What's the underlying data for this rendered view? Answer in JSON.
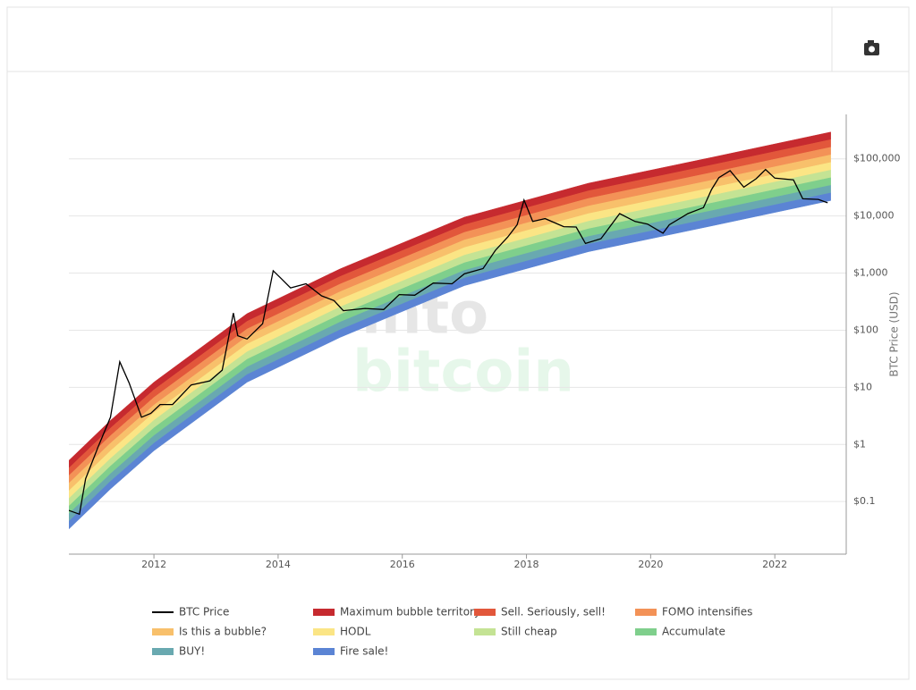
{
  "chart_data": {
    "type": "rainbow",
    "yscale": "log",
    "grid": true,
    "ylabel": "BTC Price (USD)",
    "watermark": [
      "into",
      "bitcoin"
    ],
    "xlim": [
      2010.63,
      2023.15
    ],
    "xticks": [
      2012,
      2014,
      2016,
      2018,
      2020,
      2022
    ],
    "ylim": [
      0.012,
      600000
    ],
    "yticks": [
      {
        "value": 0.1,
        "label": "$0.1"
      },
      {
        "value": 1,
        "label": "$1"
      },
      {
        "value": 10,
        "label": "$10"
      },
      {
        "value": 100,
        "label": "$100"
      },
      {
        "value": 1000,
        "label": "$1,000"
      },
      {
        "value": 10000,
        "label": "$10,000"
      },
      {
        "value": 100000,
        "label": "$100,000"
      }
    ],
    "x": [
      2010.63,
      2011.3,
      2012,
      2013.5,
      2015,
      2017,
      2019,
      2021,
      2022.9
    ],
    "price": {
      "name": "BTC Price",
      "color": "#000000",
      "x": [
        2010.63,
        2010.8,
        2010.9,
        2011.1,
        2011.3,
        2011.45,
        2011.6,
        2011.8,
        2011.95,
        2012.1,
        2012.3,
        2012.6,
        2012.9,
        2013.1,
        2013.28,
        2013.35,
        2013.5,
        2013.75,
        2013.92,
        2014.05,
        2014.2,
        2014.45,
        2014.7,
        2014.9,
        2015.05,
        2015.4,
        2015.7,
        2015.95,
        2016.2,
        2016.5,
        2016.8,
        2017.0,
        2017.3,
        2017.5,
        2017.7,
        2017.85,
        2017.96,
        2018.1,
        2018.3,
        2018.6,
        2018.8,
        2018.95,
        2019.2,
        2019.5,
        2019.75,
        2019.95,
        2020.2,
        2020.3,
        2020.6,
        2020.85,
        2020.98,
        2021.1,
        2021.28,
        2021.5,
        2021.7,
        2021.85,
        2022.0,
        2022.3,
        2022.45,
        2022.7,
        2022.85
      ],
      "values": [
        0.07,
        0.06,
        0.25,
        0.9,
        3,
        28,
        12,
        3,
        3.5,
        5,
        5,
        11,
        13,
        20,
        200,
        80,
        70,
        130,
        1100,
        800,
        550,
        650,
        400,
        330,
        220,
        240,
        230,
        420,
        410,
        670,
        650,
        970,
        1200,
        2500,
        4300,
        7000,
        19000,
        8000,
        9000,
        6500,
        6400,
        3300,
        4000,
        11000,
        8000,
        7200,
        5000,
        7000,
        11000,
        14000,
        29000,
        47000,
        62000,
        32000,
        45000,
        65000,
        46000,
        43000,
        20000,
        19500,
        17000
      ]
    },
    "series": [
      {
        "name": "Maximum bubble territory",
        "color": "#c62a2f",
        "values": [
          0.524,
          2.63,
          12.3,
          195,
          1187,
          9539,
          37510,
          106900,
          294600
        ]
      },
      {
        "name": "Sell. Seriously, sell!",
        "color": "#e2573b",
        "values": [
          0.385,
          1.93,
          9.03,
          143,
          873,
          7019,
          27600,
          78690,
          216700
        ]
      },
      {
        "name": "FOMO intensifies",
        "color": "#f39257",
        "values": [
          0.284,
          1.42,
          6.65,
          105,
          643,
          5168,
          20320,
          57930,
          159600
        ]
      },
      {
        "name": "Is this a bubble?",
        "color": "#f8c06b",
        "values": [
          0.209,
          1.05,
          4.89,
          77.5,
          473,
          3799,
          14940,
          42590,
          117300
        ]
      },
      {
        "name": "HODL",
        "color": "#fbe585",
        "values": [
          0.154,
          0.77,
          3.6,
          57.1,
          348,
          2798,
          11000,
          31370,
          86400
        ]
      },
      {
        "name": "Still cheap",
        "color": "#c4e394",
        "values": [
          0.113,
          0.566,
          2.65,
          41.9,
          256,
          2056,
          8085,
          23050,
          63490
        ]
      },
      {
        "name": "Accumulate",
        "color": "#7fcf8c",
        "values": [
          0.0831,
          0.417,
          1.95,
          30.9,
          188,
          1514,
          5951,
          16970,
          46740
        ]
      },
      {
        "name": "BUY!",
        "color": "#69a9b0",
        "values": [
          0.0611,
          0.307,
          1.43,
          22.7,
          139,
          1114,
          4379,
          12490,
          34390
        ]
      },
      {
        "name": "Fire sale!",
        "color": "#5b84d4",
        "values": [
          0.045,
          0.226,
          1.05,
          16.7,
          102,
          819,
          3222,
          9187,
          25300
        ],
        "low": [
          0.0331,
          0.166,
          0.776,
          12.3,
          75,
          603,
          2371,
          6760,
          18620
        ]
      }
    ]
  }
}
